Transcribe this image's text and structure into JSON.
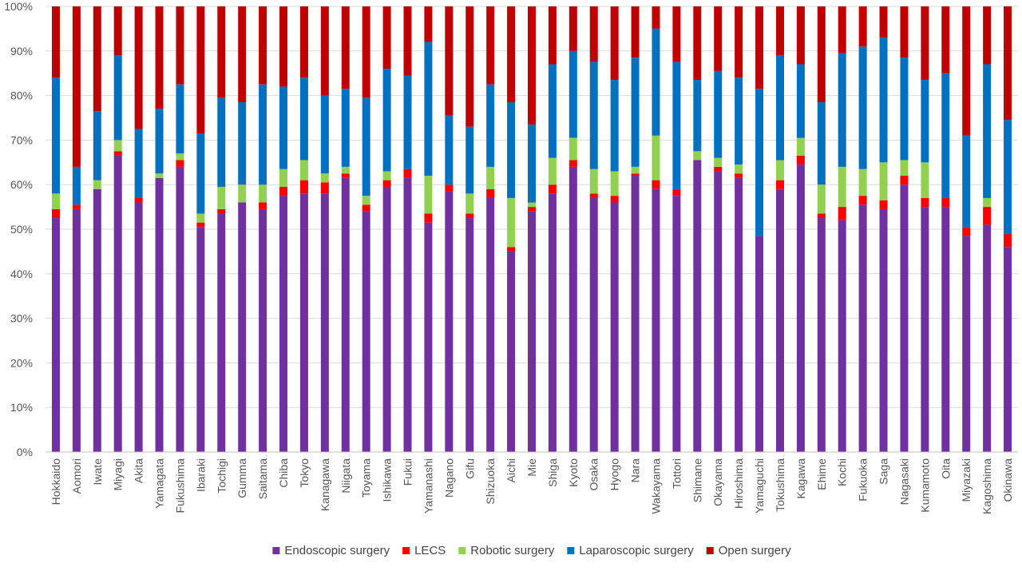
{
  "chart_data": {
    "type": "bar",
    "stacked": true,
    "percent": true,
    "ylim": [
      0,
      100
    ],
    "yticks": [
      "0%",
      "10%",
      "20%",
      "30%",
      "40%",
      "50%",
      "60%",
      "70%",
      "80%",
      "90%",
      "100%"
    ],
    "grid": true,
    "legend_position": "bottom",
    "categories": [
      "Hokkaido",
      "Aomori",
      "Iwate",
      "Miyagi",
      "Akita",
      "Yamagata",
      "Fukushima",
      "Ibaraki",
      "Tochigi",
      "Gumma",
      "Saitama",
      "Chiba",
      "Tokyo",
      "Kanagawa",
      "Niigata",
      "Toyama",
      "Ishikawa",
      "Fukui",
      "Yamanashi",
      "Nagano",
      "Gifu",
      "Shizuoka",
      "Aichi",
      "Mie",
      "Shiga",
      "Kyoto",
      "Osaka",
      "Hyogo",
      "Nara",
      "Wakayama",
      "Tottori",
      "Shimane",
      "Okayama",
      "Hiroshima",
      "Yamaguchi",
      "Tokushima",
      "Kagawa",
      "Ehime",
      "Kochi",
      "Fukuoka",
      "Saga",
      "Nagasaki",
      "Kumamoto",
      "Oita",
      "Miyazaki",
      "Kagoshima",
      "Okinawa"
    ],
    "series": [
      {
        "name": "Endoscopic surgery",
        "color": "#7030A0",
        "values": [
          52.5,
          54.5,
          59,
          66.5,
          56,
          61.5,
          64,
          50.5,
          53.5,
          56,
          54.5,
          57.5,
          58,
          58,
          61.5,
          54,
          59.5,
          61.5,
          51.5,
          58.5,
          52.5,
          57,
          45,
          54,
          58,
          64,
          57,
          56,
          62,
          59,
          57.5,
          65.5,
          63,
          61.5,
          48.5,
          59,
          64.5,
          52.5,
          52,
          55.5,
          54.5,
          60,
          55,
          55,
          48.5,
          51,
          46
        ]
      },
      {
        "name": "LECS",
        "color": "#FF0000",
        "values": [
          2,
          1,
          0,
          1,
          1,
          0,
          1.5,
          1,
          1,
          0,
          1.5,
          2,
          3,
          2.5,
          1,
          1.5,
          1.5,
          2,
          2,
          1.5,
          1,
          2,
          1,
          1,
          2,
          1.5,
          1,
          1.5,
          0.5,
          2,
          1.5,
          0,
          1,
          1,
          0,
          2,
          2,
          1,
          3,
          2,
          2,
          2,
          2,
          2,
          2,
          4,
          3
        ]
      },
      {
        "name": "Robotic surgery",
        "color": "#92D050",
        "values": [
          3.5,
          0,
          2,
          2.5,
          0,
          1,
          1.5,
          2,
          5,
          4,
          4,
          4,
          4.5,
          2,
          1.5,
          2,
          2,
          0,
          8.5,
          0,
          4.5,
          5,
          11,
          1,
          6,
          5,
          5.5,
          5.5,
          1.5,
          10,
          0,
          2,
          2,
          2,
          0,
          4.5,
          4,
          6.5,
          9,
          6,
          8.5,
          3.5,
          8,
          0,
          0,
          2,
          0
        ]
      },
      {
        "name": "Laparoscopic surgery",
        "color": "#0070C0",
        "values": [
          26,
          8.5,
          15.5,
          19,
          15.5,
          14.5,
          15.5,
          18,
          20,
          18.5,
          22.5,
          18.5,
          18.5,
          17.5,
          17.5,
          22,
          23,
          21,
          30,
          15.5,
          15,
          18.5,
          21.5,
          17.5,
          21,
          19.5,
          24,
          20.5,
          24.5,
          24,
          28.5,
          16,
          19.5,
          19.5,
          33,
          23.5,
          16.5,
          18.5,
          25.5,
          27.5,
          28,
          23,
          18.5,
          28,
          20.5,
          30,
          25.5
        ]
      },
      {
        "name": "Open surgery",
        "color": "#C00000",
        "values": [
          16,
          36,
          23.5,
          11,
          27.5,
          23,
          17.5,
          28.5,
          20.5,
          21.5,
          17.5,
          18,
          16,
          20,
          18.5,
          20.5,
          14,
          15.5,
          8,
          24.5,
          27,
          17.5,
          21.5,
          26.5,
          13,
          10,
          12.5,
          16.5,
          11.5,
          5,
          12.5,
          16.5,
          14.5,
          16,
          18.5,
          11,
          13,
          21.5,
          10.5,
          9,
          7,
          11.5,
          16.5,
          15,
          29,
          13,
          25.5
        ]
      }
    ]
  }
}
